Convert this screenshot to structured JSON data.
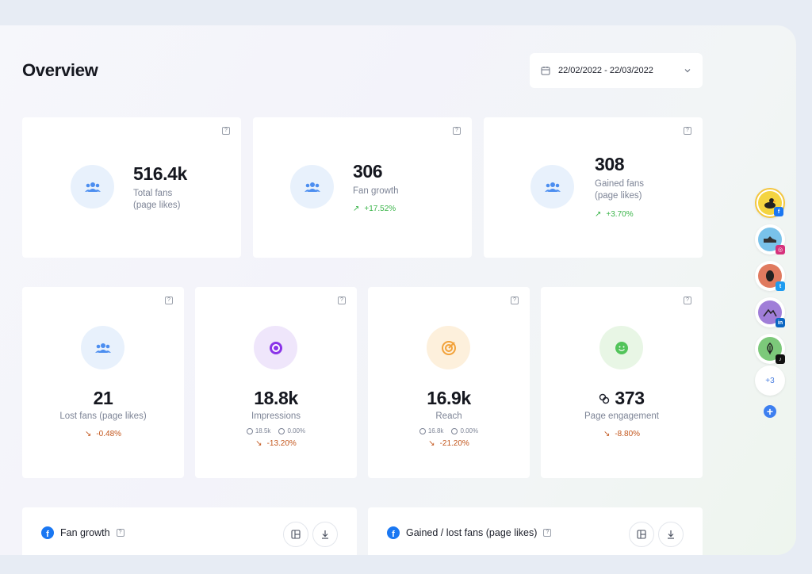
{
  "header": {
    "title": "Overview",
    "date_range": "22/02/2022 - 22/03/2022"
  },
  "top_cards": [
    {
      "value": "516.4k",
      "label_line1": "Total fans",
      "label_line2": "(page likes)",
      "change": ""
    },
    {
      "value": "306",
      "label_line1": "Fan growth",
      "label_line2": "",
      "change": "+17.52%"
    },
    {
      "value": "308",
      "label_line1": "Gained fans",
      "label_line2": "(page likes)",
      "change": "+3.70%"
    }
  ],
  "metric_cards": [
    {
      "value": "21",
      "label": "Lost fans (page likes)",
      "change": "-0.48%",
      "mini_a": "",
      "mini_b": ""
    },
    {
      "value": "18.8k",
      "label": "Impressions",
      "change": "-13.20%",
      "mini_a": "18.5k",
      "mini_b": "0.00%"
    },
    {
      "value": "16.9k",
      "label": "Reach",
      "change": "-21.20%",
      "mini_a": "16.8k",
      "mini_b": "0.00%"
    },
    {
      "value": "373",
      "label": "Page engagement",
      "change": "-8.80%",
      "mini_a": "",
      "mini_b": ""
    }
  ],
  "bottom_cards": [
    {
      "title": "Fan growth"
    },
    {
      "title": "Gained / lost fans (page likes)"
    }
  ],
  "sidebar": {
    "accounts": [
      {
        "network": "facebook",
        "badge_color": "#1a77f2",
        "avatar_color": "#f4d440"
      },
      {
        "network": "instagram",
        "badge_color": "#d6327c",
        "avatar_color": "#79c2ea"
      },
      {
        "network": "twitter",
        "badge_color": "#1d9bf0",
        "avatar_color": "#e07a5f"
      },
      {
        "network": "linkedin",
        "badge_color": "#0a66c2",
        "avatar_color": "#a07ed8"
      },
      {
        "network": "tiktok",
        "badge_color": "#111111",
        "avatar_color": "#7cc97a"
      }
    ],
    "more_label": "+3",
    "add_label": "+"
  },
  "help_label": "?"
}
